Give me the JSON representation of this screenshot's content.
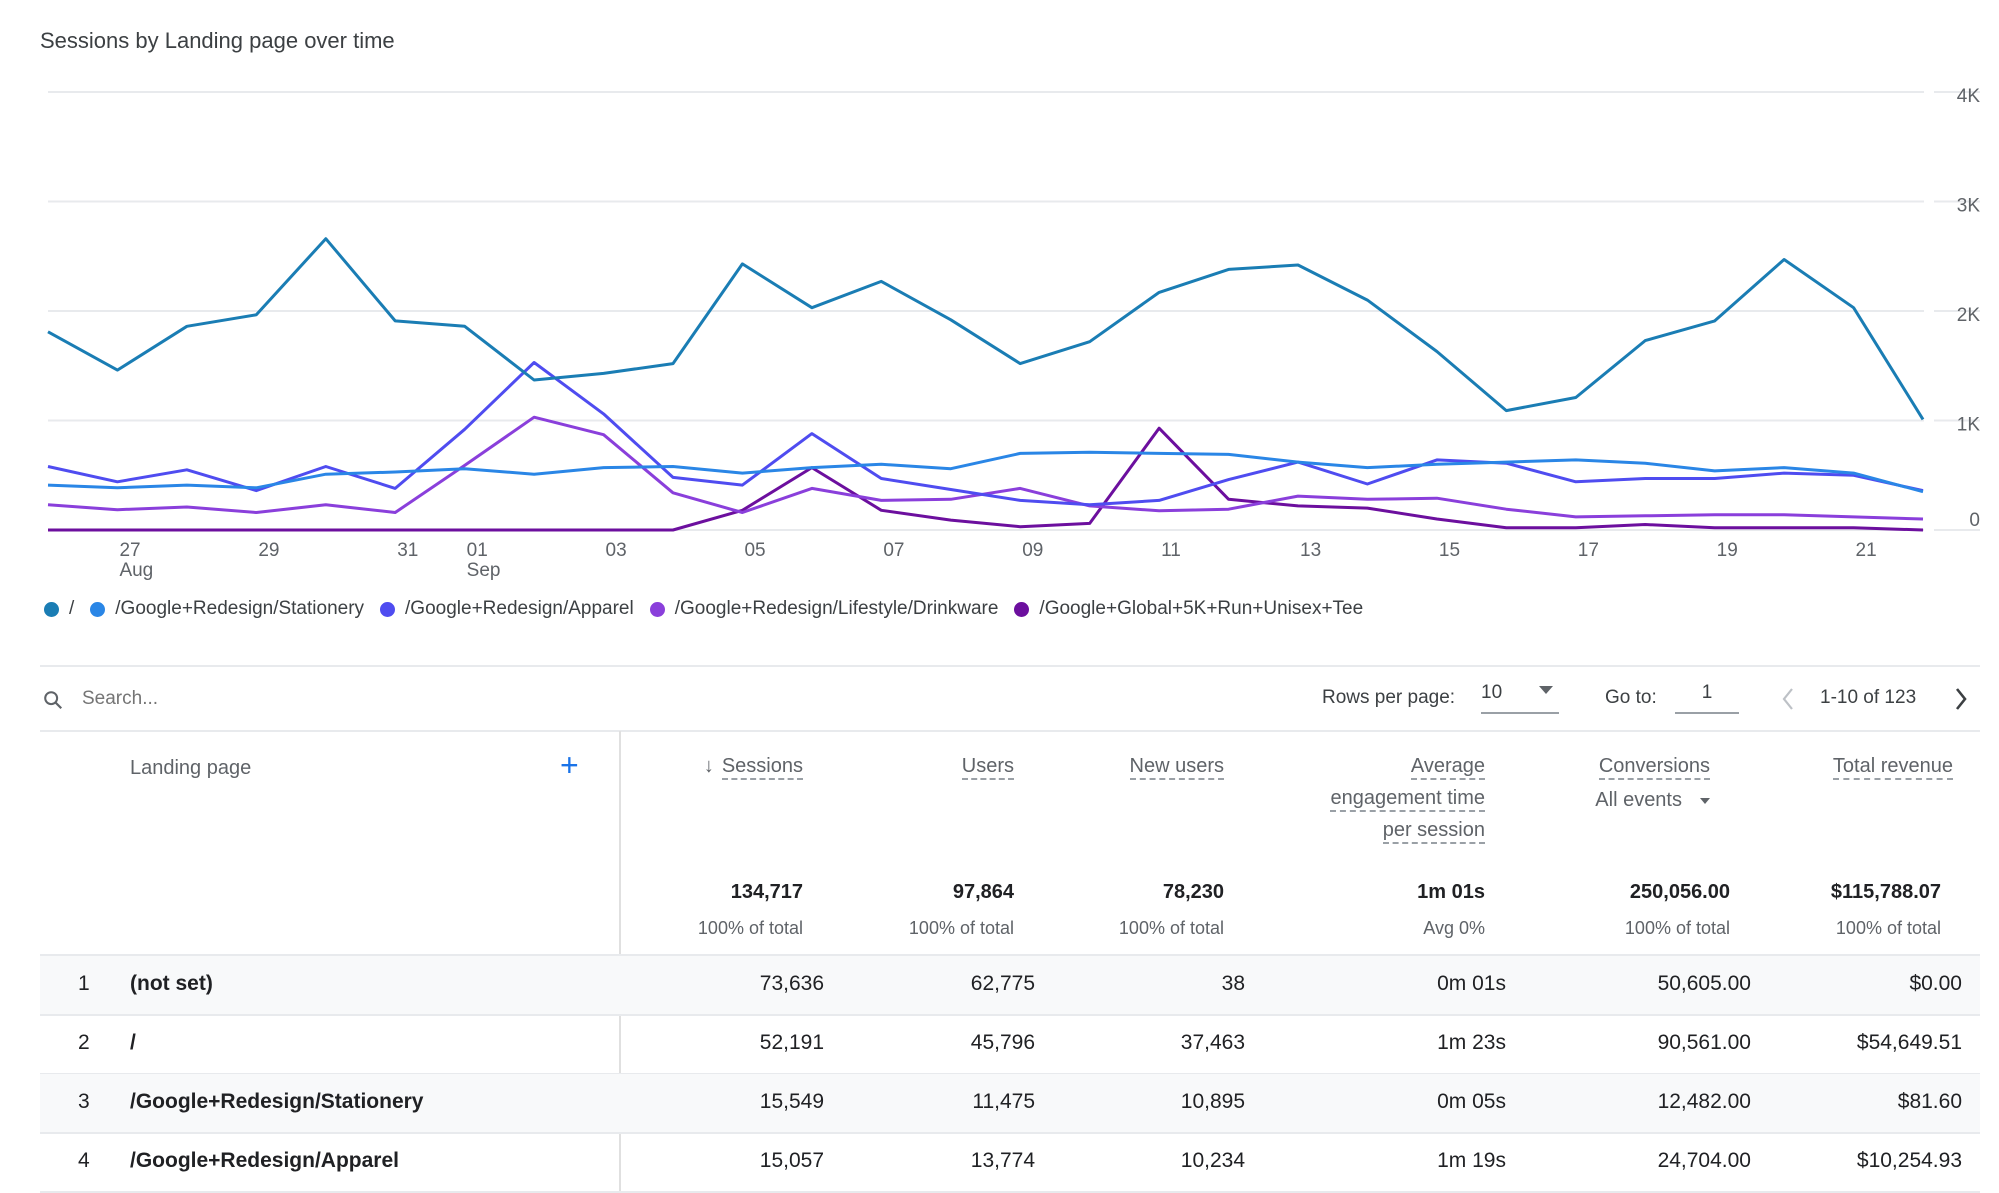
{
  "chart_title": "Sessions by Landing page over time",
  "chart_data": {
    "type": "line",
    "title": "Sessions by Landing page over time",
    "x": [
      "Aug 26",
      "Aug 27",
      "Aug 28",
      "Aug 29",
      "Aug 30",
      "Aug 31",
      "Sep 01",
      "Sep 02",
      "Sep 03",
      "Sep 04",
      "Sep 05",
      "Sep 06",
      "Sep 07",
      "Sep 08",
      "Sep 09",
      "Sep 10",
      "Sep 11",
      "Sep 12",
      "Sep 13",
      "Sep 14",
      "Sep 15",
      "Sep 16",
      "Sep 17",
      "Sep 18",
      "Sep 19",
      "Sep 20",
      "Sep 21",
      "Sep 22"
    ],
    "x_ticks": [
      {
        "index": 1,
        "label": "27",
        "sub": "Aug"
      },
      {
        "index": 3,
        "label": "29",
        "sub": ""
      },
      {
        "index": 5,
        "label": "31",
        "sub": ""
      },
      {
        "index": 6,
        "label": "01",
        "sub": "Sep"
      },
      {
        "index": 8,
        "label": "03",
        "sub": ""
      },
      {
        "index": 10,
        "label": "05",
        "sub": ""
      },
      {
        "index": 12,
        "label": "07",
        "sub": ""
      },
      {
        "index": 14,
        "label": "09",
        "sub": ""
      },
      {
        "index": 16,
        "label": "11",
        "sub": ""
      },
      {
        "index": 18,
        "label": "13",
        "sub": ""
      },
      {
        "index": 20,
        "label": "15",
        "sub": ""
      },
      {
        "index": 22,
        "label": "17",
        "sub": ""
      },
      {
        "index": 24,
        "label": "19",
        "sub": ""
      },
      {
        "index": 26,
        "label": "21",
        "sub": ""
      }
    ],
    "y_ticks": [
      {
        "value": 0,
        "label": "0"
      },
      {
        "value": 1000,
        "label": "1K"
      },
      {
        "value": 2000,
        "label": "2K"
      },
      {
        "value": 3000,
        "label": "3K"
      },
      {
        "value": 4000,
        "label": "4K"
      }
    ],
    "ylim": [
      0,
      4000
    ],
    "grid": true,
    "legend_position": "bottom-left",
    "series": [
      {
        "name": "/",
        "color": "#1a7db4",
        "values": [
          1810,
          1460,
          1860,
          1965,
          2660,
          1910,
          1860,
          1370,
          1430,
          1520,
          2430,
          2030,
          2270,
          1920,
          1520,
          1720,
          2170,
          2380,
          2420,
          2100,
          1630,
          1090,
          1210,
          1730,
          1910,
          2470,
          2030,
          1010
        ]
      },
      {
        "name": "/Google+Redesign/Stationery",
        "color": "#2a86e6",
        "values": [
          410,
          385,
          410,
          385,
          510,
          530,
          560,
          510,
          570,
          580,
          520,
          570,
          600,
          560,
          700,
          710,
          700,
          690,
          620,
          570,
          600,
          620,
          640,
          610,
          540,
          570,
          520,
          350
        ]
      },
      {
        "name": "/Google+Redesign/Apparel",
        "color": "#4f4cf0",
        "values": [
          580,
          440,
          550,
          360,
          580,
          380,
          920,
          1530,
          1060,
          480,
          410,
          880,
          470,
          370,
          270,
          230,
          270,
          460,
          620,
          420,
          640,
          610,
          440,
          470,
          470,
          520,
          500,
          360
        ]
      },
      {
        "name": "/Google+Redesign/Lifestyle/Drinkware",
        "color": "#8a3fdb",
        "values": [
          230,
          185,
          210,
          160,
          230,
          160,
          590,
          1030,
          870,
          340,
          160,
          380,
          270,
          280,
          380,
          220,
          175,
          190,
          310,
          280,
          290,
          190,
          120,
          130,
          140,
          140,
          120,
          100
        ]
      },
      {
        "name": "/Google+Global+5K+Run+Unisex+Tee",
        "color": "#6c0f9e",
        "values": [
          0,
          0,
          0,
          0,
          0,
          0,
          0,
          0,
          0,
          0,
          180,
          570,
          180,
          90,
          30,
          60,
          930,
          280,
          220,
          200,
          100,
          20,
          20,
          50,
          20,
          20,
          20,
          0
        ]
      }
    ]
  },
  "toolbar": {
    "search_placeholder": "Search...",
    "rows_per_page_label": "Rows per page:",
    "rows_per_page_value": "10",
    "go_to_label": "Go to:",
    "go_to_value": "1",
    "range_text": "1-10 of 123"
  },
  "table": {
    "dimension_header": "Landing page",
    "headers": {
      "sessions": "Sessions",
      "users": "Users",
      "new_users": "New users",
      "avg_line1": "Average",
      "avg_line2": "engagement time",
      "avg_line3": "per session",
      "conversions": "Conversions",
      "conversions_filter": "All events",
      "revenue": "Total revenue"
    },
    "totals": {
      "sessions": "134,717",
      "sessions_pct": "100% of total",
      "users": "97,864",
      "users_pct": "100% of total",
      "new_users": "78,230",
      "new_users_pct": "100% of total",
      "avg": "1m 01s",
      "avg_pct": "Avg 0%",
      "conversions": "250,056.00",
      "conversions_pct": "100% of total",
      "revenue": "$115,788.07",
      "revenue_pct": "100% of total"
    },
    "rows": [
      {
        "rank": "1",
        "page": "(not set)",
        "sessions": "73,636",
        "users": "62,775",
        "new_users": "38",
        "avg": "0m 01s",
        "conversions": "50,605.00",
        "revenue": "$0.00"
      },
      {
        "rank": "2",
        "page": "/",
        "sessions": "52,191",
        "users": "45,796",
        "new_users": "37,463",
        "avg": "1m 23s",
        "conversions": "90,561.00",
        "revenue": "$54,649.51"
      },
      {
        "rank": "3",
        "page": "/Google+Redesign/Stationery",
        "sessions": "15,549",
        "users": "11,475",
        "new_users": "10,895",
        "avg": "0m 05s",
        "conversions": "12,482.00",
        "revenue": "$81.60"
      },
      {
        "rank": "4",
        "page": "/Google+Redesign/Apparel",
        "sessions": "15,057",
        "users": "13,774",
        "new_users": "10,234",
        "avg": "1m 19s",
        "conversions": "24,704.00",
        "revenue": "$10,254.93"
      }
    ]
  }
}
